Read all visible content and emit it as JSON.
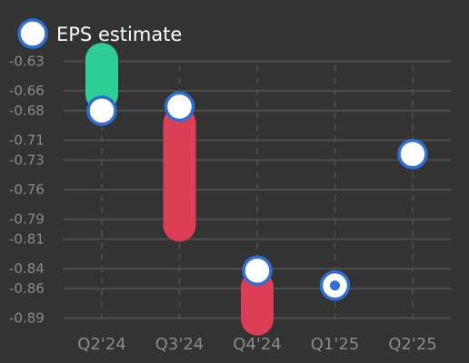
{
  "chart_data": {
    "type": "eps_range",
    "title": "",
    "xlabel": "",
    "ylabel": "",
    "ylim": [
      -0.895,
      -0.625
    ],
    "grid": true,
    "legend": {
      "position": "top-left",
      "label": "EPS estimate"
    },
    "y_ticks": [
      "-0.63",
      "-0.66",
      "-0.68",
      "-0.71",
      "-0.73",
      "-0.76",
      "-0.79",
      "-0.81",
      "-0.84",
      "-0.86",
      "-0.89"
    ],
    "categories": [
      "Q2'24",
      "Q3'24",
      "Q4'24",
      "Q1'25",
      "Q2'25"
    ],
    "series": [
      {
        "name": "EPS estimate",
        "values": [
          -0.68,
          -0.676,
          -0.842,
          -0.857,
          -0.724
        ]
      }
    ],
    "actual": [
      -0.628,
      -0.796,
      -0.891,
      -0.857,
      null
    ],
    "colors": {
      "beat": "#2ecf95",
      "miss": "#db3e55",
      "marker_ring": "#2f6fd4",
      "marker_fill": "#ffffff",
      "grid": "#4d4d4d",
      "tick": "#8a8a8a",
      "background": "#333333"
    }
  }
}
